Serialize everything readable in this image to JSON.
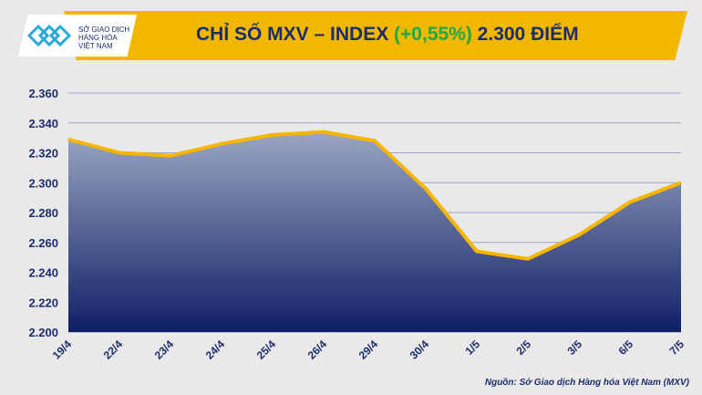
{
  "header": {
    "title_prefix": "CHỈ SỐ MXV – INDEX ",
    "title_pct": "(+0,55%)",
    "title_suffix": " 2.300 ĐIỂM"
  },
  "logo": {
    "line1": "SỞ GIAO DỊCH",
    "line2": "HÀNG HÓA",
    "line3": "VIỆT NAM"
  },
  "source": "Nguồn: Sở Giao dịch Hàng hóa Việt Nam (MXV)",
  "colors": {
    "line": "#f7b500",
    "fill_top": "#9aa6c2",
    "fill_bottom": "#0f1f66",
    "axis_text": "#1d2d6b"
  },
  "chart_data": {
    "type": "area",
    "title": "CHỈ SỐ MXV – INDEX (+0,55%) 2.300 ĐIỂM",
    "categories": [
      "19/4",
      "22/4",
      "23/4",
      "24/4",
      "25/4",
      "26/4",
      "29/4",
      "30/4",
      "1/5",
      "2/5",
      "3/5",
      "6/5",
      "7/5"
    ],
    "values": [
      2329,
      2320,
      2318,
      2326,
      2332,
      2334,
      2328,
      2296,
      2254,
      2249,
      2265,
      2287,
      2300
    ],
    "ylim": [
      2200,
      2360
    ],
    "yticks": [
      2200,
      2220,
      2240,
      2260,
      2280,
      2300,
      2320,
      2340,
      2360
    ],
    "ytick_labels": [
      "2.200",
      "2.220",
      "2.240",
      "2.260",
      "2.280",
      "2.300",
      "2.320",
      "2.340",
      "2.360"
    ],
    "grid": true
  }
}
